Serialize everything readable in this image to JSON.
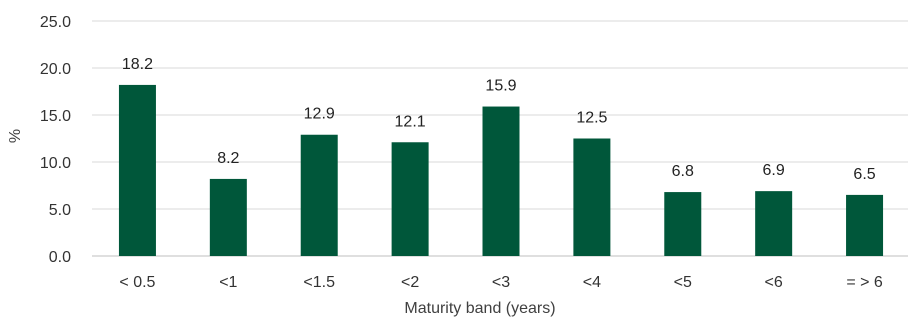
{
  "chart_data": {
    "type": "bar",
    "categories": [
      "< 0.5",
      "<1",
      "<1.5",
      "<2",
      "<3",
      "<4",
      "<5",
      "<6",
      "= > 6"
    ],
    "values": [
      18.2,
      8.2,
      12.9,
      12.1,
      15.9,
      12.5,
      6.8,
      6.9,
      6.5
    ],
    "value_labels": [
      "18.2",
      "8.2",
      "12.9",
      "12.1",
      "15.9",
      "12.5",
      "6.8",
      "6.9",
      "6.5"
    ],
    "xlabel": "Maturity band (years)",
    "ylabel": "%",
    "ylim": [
      0,
      25
    ],
    "yticks": [
      "0.0",
      "5.0",
      "10.0",
      "15.0",
      "20.0",
      "25.0"
    ],
    "grid": true,
    "bar_color": "#00573a"
  }
}
